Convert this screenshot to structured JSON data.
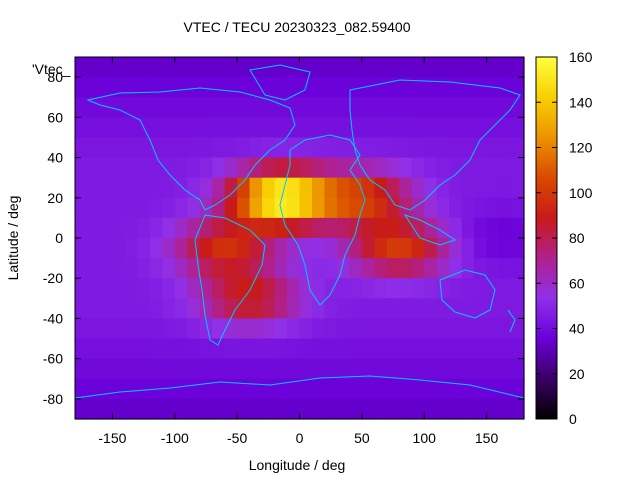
{
  "chart_data": {
    "type": "heatmap",
    "title": "VTEC / TECU 20230323_082.59400",
    "xlabel": "Longitude / deg",
    "ylabel": "Latitude / deg",
    "series_key": "'Vtec_",
    "xlim": [
      -180,
      180
    ],
    "ylim": [
      -90,
      90
    ],
    "x_ticks": [
      -150,
      -100,
      -50,
      0,
      50,
      100,
      150
    ],
    "y_ticks": [
      -80,
      -60,
      -40,
      -20,
      0,
      20,
      40,
      60,
      80
    ],
    "colorbar": {
      "range": [
        0,
        160
      ],
      "ticks": [
        0,
        20,
        40,
        60,
        80,
        100,
        120,
        140,
        160
      ],
      "palette": [
        "#000000",
        "#3a0064",
        "#6a00d8",
        "#9030e8",
        "#b0208c",
        "#c81a1a",
        "#d84a00",
        "#ec9400",
        "#f8d000",
        "#ffff40"
      ]
    },
    "background_level": 45,
    "features": [
      {
        "name": "equatorial-anomaly-north-peak",
        "lon": -15,
        "lat": 20,
        "peak": 160
      },
      {
        "name": "crest-north-africa-asia",
        "lon": 50,
        "lat": 20,
        "peak": 100
      },
      {
        "name": "southern-band-south-america",
        "lon": -60,
        "lat": -5,
        "peak": 95
      },
      {
        "name": "indian-ocean-band",
        "lon": 80,
        "lat": -5,
        "peak": 100
      },
      {
        "name": "south-atlantic-crest",
        "lon": -40,
        "lat": -30,
        "peak": 90
      },
      {
        "name": "night-side-trough",
        "lon": 160,
        "lat": 0,
        "peak": 35
      }
    ],
    "coastline_color": "#00c8ff"
  }
}
